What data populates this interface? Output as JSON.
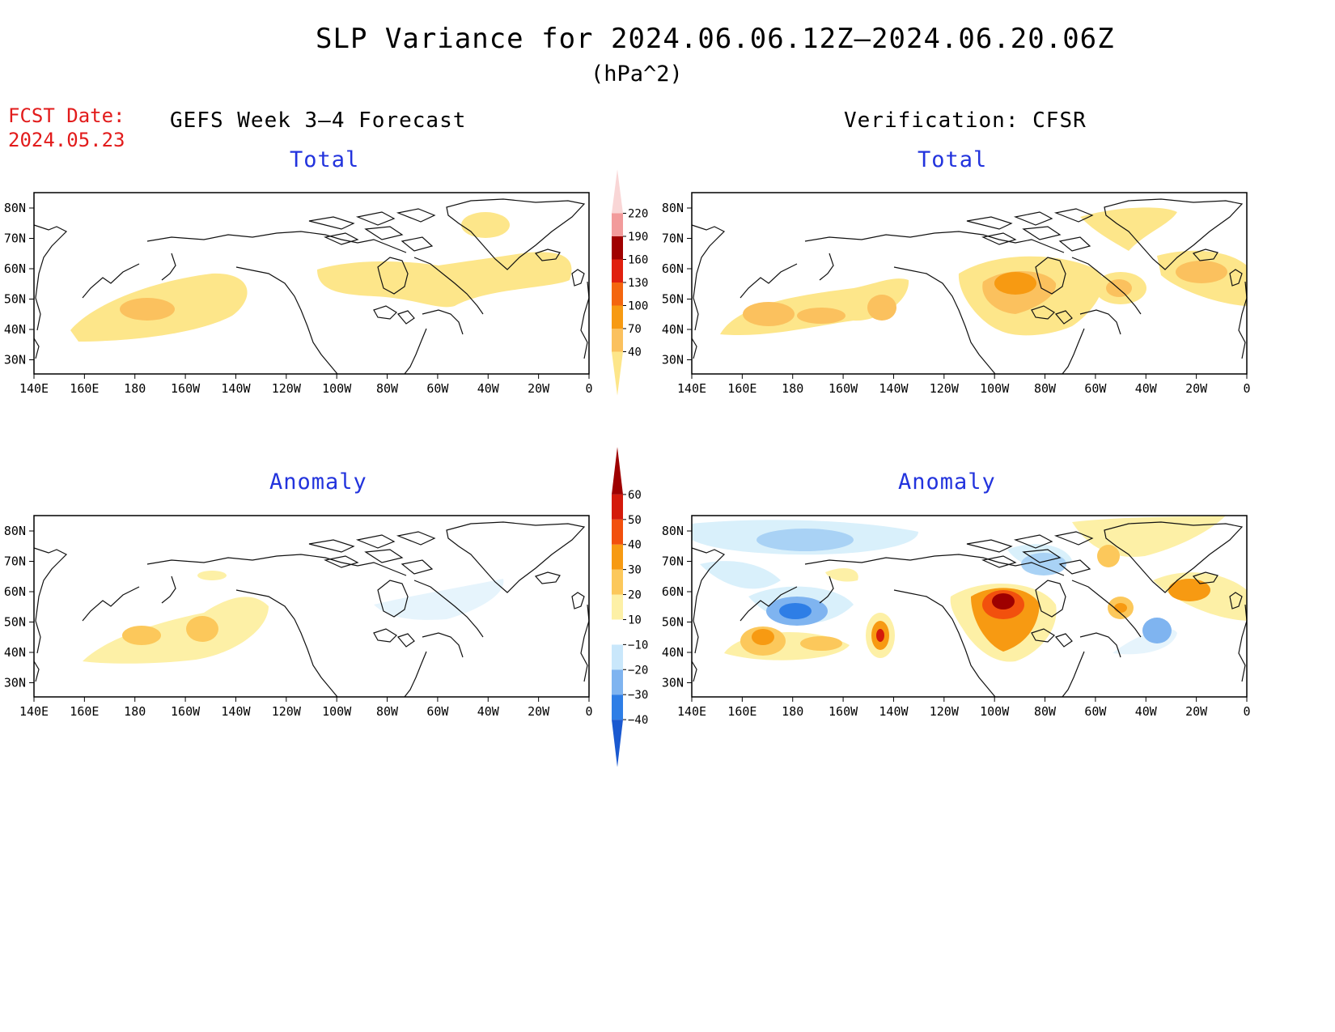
{
  "header": {
    "title": "SLP Variance for 2024.06.06.12Z–2024.06.20.06Z",
    "units": "(hPa^2)",
    "fcst_label": "FCST Date:",
    "fcst_date": "2024.05.23",
    "left_heading": "GEFS Week 3–4 Forecast",
    "right_heading": "Verification: CFSR"
  },
  "panels": {
    "tl_title": "Total",
    "tr_title": "Total",
    "bl_title": "Anomaly",
    "br_title": "Anomaly"
  },
  "axes": {
    "lat_labels": [
      "80N",
      "70N",
      "60N",
      "50N",
      "40N",
      "30N"
    ],
    "lon_labels": [
      "140E",
      "160E",
      "180",
      "160W",
      "140W",
      "120W",
      "100W",
      "80W",
      "60W",
      "40W",
      "20W",
      "0"
    ]
  },
  "colorbars": {
    "total": {
      "levels": [
        "40",
        "70",
        "100",
        "130",
        "160",
        "190",
        "220"
      ],
      "colors": [
        "#fde68a",
        "#fbc15e",
        "#f79a12",
        "#f4660f",
        "#e0200f",
        "#a00000",
        "#f29b9b",
        "#f9d6d6"
      ]
    },
    "anomaly": {
      "levels": [
        "−40",
        "−30",
        "−20",
        "−10",
        "10",
        "20",
        "30",
        "40",
        "50",
        "60"
      ],
      "colors": [
        "#1a59d0",
        "#2e7ee6",
        "#7fb4f0",
        "#c9e7fb",
        "#ffffff",
        "#fdf0a6",
        "#fcc85b",
        "#f79a12",
        "#f2500d",
        "#d41a0b",
        "#9e0000"
      ]
    }
  },
  "colors": {
    "title_blue": "#2233dd",
    "fcst_red": "#e21b1b"
  }
}
